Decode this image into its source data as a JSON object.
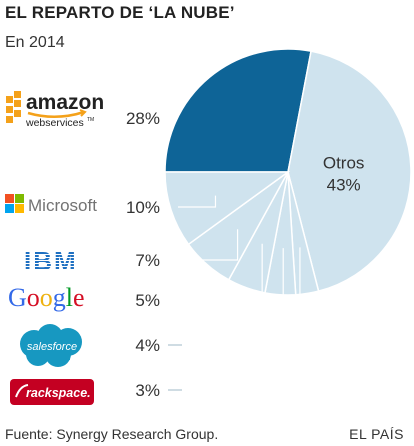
{
  "title": "EL REPARTO DE ‘LA NUBE’",
  "subtitle": "En 2014",
  "source": "Fuente: Synergy Research Group.",
  "credit": "EL PAÍS",
  "colors": {
    "highlight": "#0e6497",
    "light": "#cfe3ee",
    "leader": "#ffffff"
  },
  "logos": {
    "amazon": {
      "word": "amazon",
      "sub": "webservices",
      "tm": "TM"
    },
    "microsoft": {
      "word": "Microsoft"
    },
    "ibm": {
      "word": "IBM"
    },
    "google": {
      "letters": [
        "G",
        "o",
        "o",
        "g",
        "l",
        "e"
      ]
    },
    "salesforce": {
      "word": "salesforce"
    },
    "rackspace": {
      "word": "rackspace."
    }
  },
  "chart_data": {
    "type": "pie",
    "title": "EL REPARTO DE ‘LA NUBE’",
    "subtitle": "En 2014",
    "slices": [
      {
        "name": "Amazon Web Services",
        "label": "28%",
        "value": 28,
        "highlight": true
      },
      {
        "name": "Otros",
        "label": "43%",
        "value": 43,
        "inside_label": "Otros"
      },
      {
        "name": "Rackspace",
        "label": "3%",
        "value": 3
      },
      {
        "name": "Salesforce",
        "label": "4%",
        "value": 4
      },
      {
        "name": "Google",
        "label": "5%",
        "value": 5
      },
      {
        "name": "IBM",
        "label": "7%",
        "value": 7
      },
      {
        "name": "Microsoft",
        "label": "10%",
        "value": 10
      }
    ]
  }
}
